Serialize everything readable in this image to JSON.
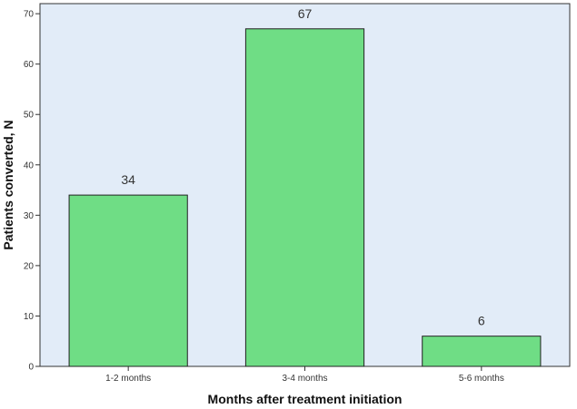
{
  "chart_data": {
    "type": "bar",
    "title": "",
    "xlabel": "Months after treatment initiation",
    "ylabel": "Patients converted, N",
    "categories": [
      "1-2 months",
      "3-4 months",
      "5-6 months"
    ],
    "values": [
      34,
      67,
      6
    ],
    "data_labels": [
      "34",
      "67",
      "6"
    ],
    "ylim": [
      0,
      72
    ],
    "yticks": [
      0,
      10,
      20,
      30,
      40,
      50,
      60,
      70
    ],
    "ytick_labels": [
      "0",
      "10",
      "20",
      "30",
      "40",
      "50",
      "60",
      "70"
    ],
    "grid": false,
    "legend": false,
    "colors": {
      "bar": "#6fdd85",
      "bar_edge": "#222222",
      "plot_bg": "#e2ecf8",
      "axis": "#333333"
    }
  }
}
